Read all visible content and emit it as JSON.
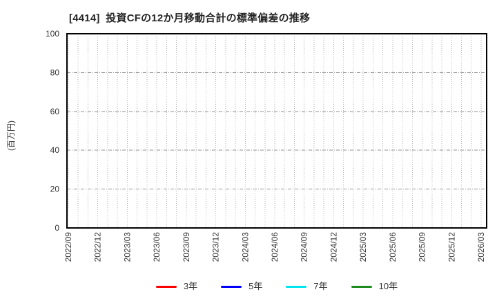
{
  "chart_data": {
    "type": "line",
    "title": "[4414]  投資CFの12か月移動合計の標準偏差の推移",
    "ylabel": "(百万円)",
    "ylim": [
      0,
      100
    ],
    "yticks": [
      0,
      20,
      40,
      60,
      80,
      100
    ],
    "x_tick_labels": [
      "2022/09",
      "2022/12",
      "2023/03",
      "2023/06",
      "2023/09",
      "2023/12",
      "2024/03",
      "2024/06",
      "2024/09",
      "2024/12",
      "2025/03",
      "2025/06",
      "2025/09",
      "2025/12",
      "2026/03"
    ],
    "x_label_interval_months": 3,
    "x_gridline_interval_months": 1,
    "grid": true,
    "legend_position": "bottom",
    "axis_color": "#000000",
    "vertical_grid_color": "#b4b4b4",
    "horizontal_grid_color": "#8f8f8f",
    "series": [
      {
        "name": "3年",
        "color": "#ff0000",
        "values": []
      },
      {
        "name": "5年",
        "color": "#0000ff",
        "values": []
      },
      {
        "name": "7年",
        "color": "#00e5ee",
        "values": []
      },
      {
        "name": "10年",
        "color": "#1e8b1e",
        "values": []
      }
    ]
  }
}
